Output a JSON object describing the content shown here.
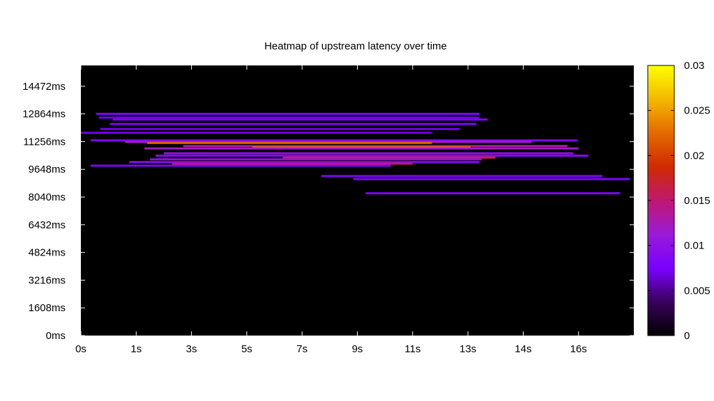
{
  "chart_data": {
    "type": "heatmap",
    "title": "Heatmap of upstream latency over time",
    "xlabel": "",
    "ylabel": "",
    "xlim": [
      0,
      20
    ],
    "ylim": [
      0,
      15678
    ],
    "x_tick_values": [
      0,
      2,
      4,
      6,
      8,
      10,
      12,
      14,
      16,
      18
    ],
    "x_tick_labels": [
      "0s",
      "1s",
      "3s",
      "5s",
      "7s",
      "9s",
      "11s",
      "13s",
      "14s",
      "16s"
    ],
    "y_tick_values": [
      0,
      1608,
      3216,
      4824,
      6432,
      8040,
      9648,
      11256,
      12864,
      14472
    ],
    "y_tick_labels": [
      "0ms",
      "1608ms",
      "3216ms",
      "4824ms",
      "6432ms",
      "8040ms",
      "9648ms",
      "11256ms",
      "12864ms",
      "14472ms"
    ],
    "colorbar": {
      "range": [
        0,
        0.03
      ],
      "tick_values": [
        0,
        0.005,
        0.01,
        0.015,
        0.02,
        0.025,
        0.03
      ],
      "tick_labels": [
        "0",
        "0.005",
        "0.01",
        "0.015",
        "0.02",
        "0.025",
        "0.03"
      ],
      "colors": [
        "#000000",
        "#3a005e",
        "#7a00ff",
        "#9b1ad8",
        "#c01870",
        "#d02a00",
        "#e46a00",
        "#f5b800",
        "#ffff00"
      ]
    },
    "background_color": "#000000",
    "segments": [
      {
        "latency_ms": 12870,
        "t_start": 0.55,
        "t_end": 14.4,
        "value": 0.008
      },
      {
        "latency_ms": 12650,
        "t_start": 0.65,
        "t_end": 14.4,
        "value": 0.007
      },
      {
        "latency_ms": 12540,
        "t_start": 1.15,
        "t_end": 14.7,
        "value": 0.008
      },
      {
        "latency_ms": 12280,
        "t_start": 1.05,
        "t_end": 14.3,
        "value": 0.008
      },
      {
        "latency_ms": 11990,
        "t_start": 0.7,
        "t_end": 13.7,
        "value": 0.007
      },
      {
        "latency_ms": 11770,
        "t_start": 0.0,
        "t_end": 12.7,
        "value": 0.007
      },
      {
        "latency_ms": 11330,
        "t_start": 0.35,
        "t_end": 17.95,
        "value": 0.008
      },
      {
        "latency_ms": 11240,
        "t_start": 1.6,
        "t_end": 16.3,
        "value": 0.012
      },
      {
        "latency_ms": 11180,
        "t_start": 2.4,
        "t_end": 12.7,
        "value": 0.022
      },
      {
        "latency_ms": 11000,
        "t_start": 3.7,
        "t_end": 17.6,
        "value": 0.013
      },
      {
        "latency_ms": 10920,
        "t_start": 6.2,
        "t_end": 14.1,
        "value": 0.023
      },
      {
        "latency_ms": 10860,
        "t_start": 2.3,
        "t_end": 18.0,
        "value": 0.012
      },
      {
        "latency_ms": 10580,
        "t_start": 3.0,
        "t_end": 17.8,
        "value": 0.01
      },
      {
        "latency_ms": 10440,
        "t_start": 2.7,
        "t_end": 18.35,
        "value": 0.009
      },
      {
        "latency_ms": 10330,
        "t_start": 7.3,
        "t_end": 15.0,
        "value": 0.017
      },
      {
        "latency_ms": 10230,
        "t_start": 2.5,
        "t_end": 14.5,
        "value": 0.01
      },
      {
        "latency_ms": 10070,
        "t_start": 1.75,
        "t_end": 14.4,
        "value": 0.009
      },
      {
        "latency_ms": 9980,
        "t_start": 3.3,
        "t_end": 12.0,
        "value": 0.015
      },
      {
        "latency_ms": 9860,
        "t_start": 0.35,
        "t_end": 11.2,
        "value": 0.008
      },
      {
        "latency_ms": 9260,
        "t_start": 8.7,
        "t_end": 18.85,
        "value": 0.008
      },
      {
        "latency_ms": 9080,
        "t_start": 9.85,
        "t_end": 19.85,
        "value": 0.008
      },
      {
        "latency_ms": 8260,
        "t_start": 10.3,
        "t_end": 19.5,
        "value": 0.008
      }
    ]
  }
}
